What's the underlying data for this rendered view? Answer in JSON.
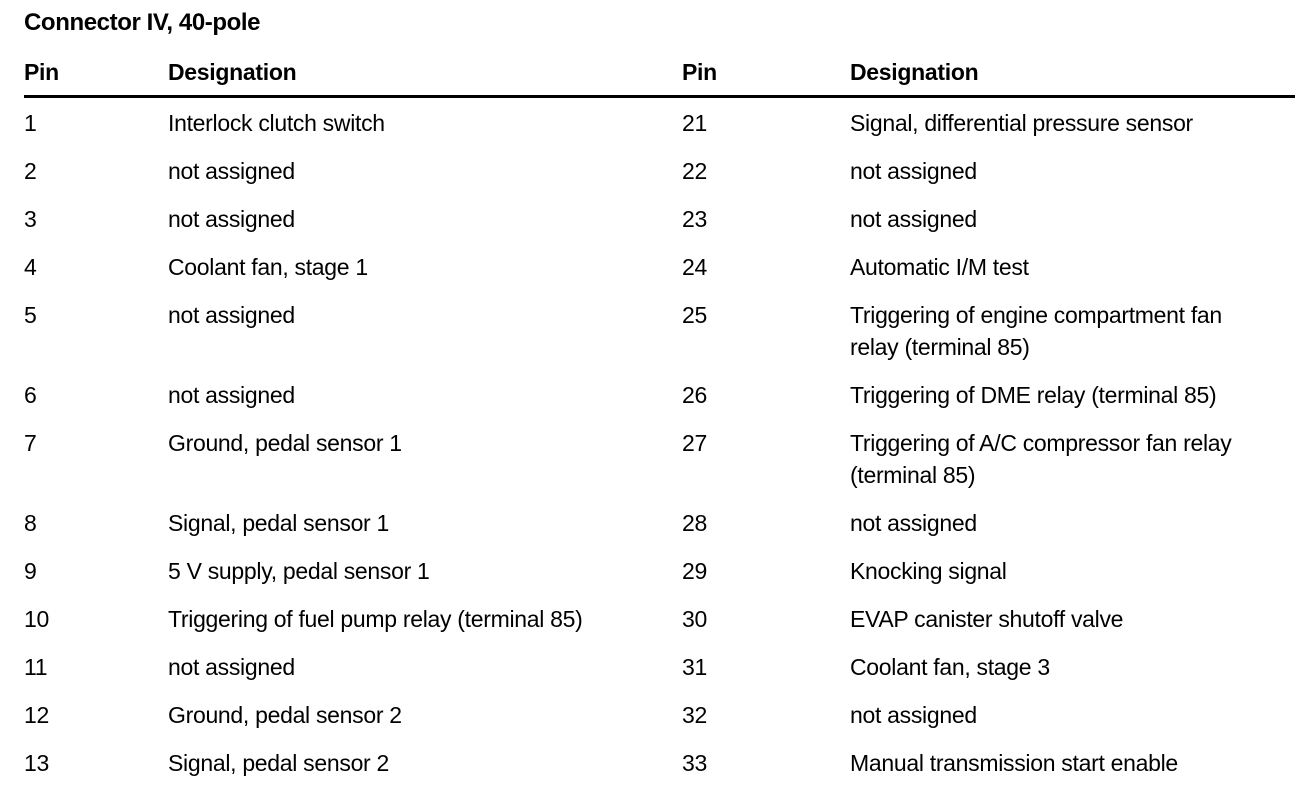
{
  "title": "Connector IV, 40-pole",
  "table": {
    "headers": {
      "pin_left": "Pin",
      "designation_left": "Designation",
      "pin_right": "Pin",
      "designation_right": "Designation"
    },
    "rows": [
      {
        "left_pin": "1",
        "left_designation": "Interlock clutch switch",
        "right_pin": "21",
        "right_designation": "Signal, differential pressure sensor"
      },
      {
        "left_pin": "2",
        "left_designation": "not assigned",
        "right_pin": "22",
        "right_designation": "not assigned"
      },
      {
        "left_pin": "3",
        "left_designation": "not assigned",
        "right_pin": "23",
        "right_designation": "not assigned"
      },
      {
        "left_pin": "4",
        "left_designation": "Coolant fan, stage 1",
        "right_pin": "24",
        "right_designation": "Automatic I/M test"
      },
      {
        "left_pin": "5",
        "left_designation": "not assigned",
        "right_pin": "25",
        "right_designation": "Triggering of engine compartment fan\nrelay (terminal 85)"
      },
      {
        "left_pin": "6",
        "left_designation": "not assigned",
        "right_pin": "26",
        "right_designation": "Triggering of DME relay (terminal 85)"
      },
      {
        "left_pin": "7",
        "left_designation": "Ground, pedal sensor 1",
        "right_pin": "27",
        "right_designation": "Triggering of A/C compressor fan relay\n(terminal 85)"
      },
      {
        "left_pin": "8",
        "left_designation": "Signal, pedal sensor 1",
        "right_pin": "28",
        "right_designation": "not assigned"
      },
      {
        "left_pin": "9",
        "left_designation": "5 V supply, pedal sensor 1",
        "right_pin": "29",
        "right_designation": "Knocking signal"
      },
      {
        "left_pin": "10",
        "left_designation": "Triggering of fuel pump relay (terminal 85)",
        "right_pin": "30",
        "right_designation": "EVAP canister shutoff valve"
      },
      {
        "left_pin": "11",
        "left_designation": "not assigned",
        "right_pin": "31",
        "right_designation": "Coolant fan, stage 3"
      },
      {
        "left_pin": "12",
        "left_designation": "Ground, pedal sensor 2",
        "right_pin": "32",
        "right_designation": "not assigned"
      },
      {
        "left_pin": "13",
        "left_designation": "Signal, pedal sensor 2",
        "right_pin": "33",
        "right_designation": "Manual transmission start enable"
      }
    ]
  },
  "colors": {
    "text": "#000000",
    "background": "#ffffff",
    "rule": "#000000"
  }
}
